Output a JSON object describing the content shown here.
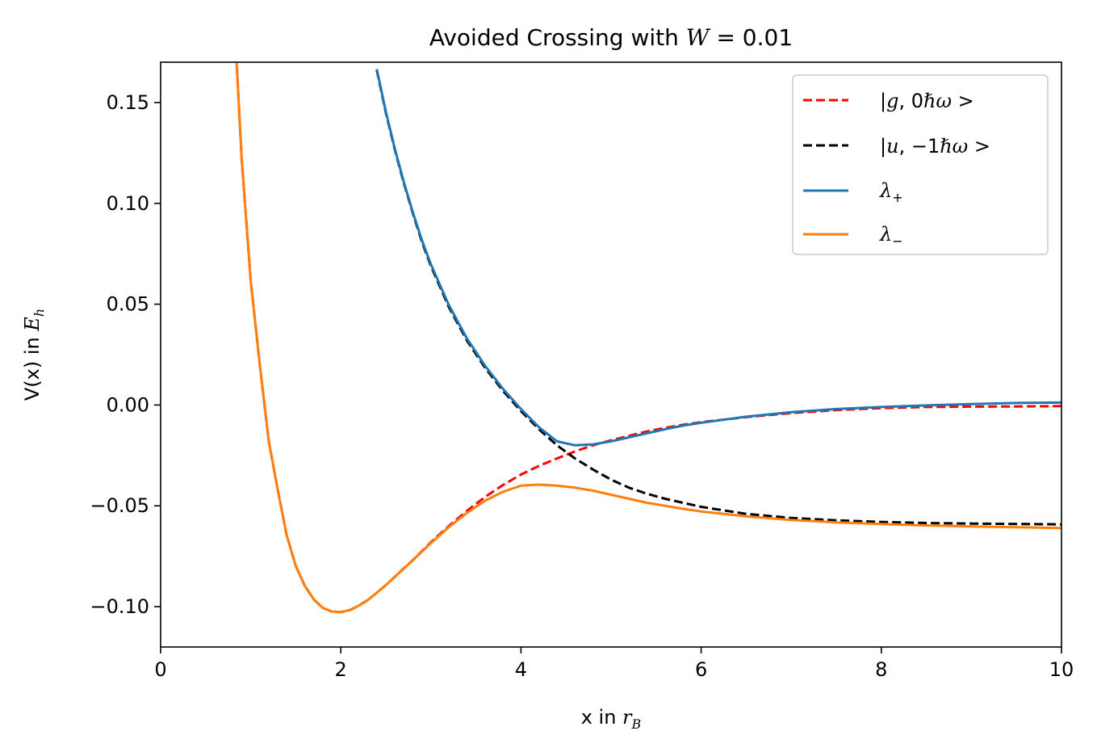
{
  "chart_data": {
    "type": "line",
    "title": "Avoided Crossing with W = 0.01",
    "title_parts": {
      "prefix": "Avoided Crossing with ",
      "var": "W",
      "suffix": " = 0.01"
    },
    "xlabel": "x in r_B",
    "xlabel_parts": {
      "prefix": "x in ",
      "var": "r",
      "sub": "B"
    },
    "ylabel": "V(x) in E_h",
    "ylabel_parts": {
      "prefix": "V(x) in ",
      "var": "E",
      "sub": "h"
    },
    "xlim": [
      0,
      10
    ],
    "ylim": [
      -0.12,
      0.17
    ],
    "xticks": [
      0,
      2,
      4,
      6,
      8,
      10
    ],
    "xtick_labels": [
      "0",
      "2",
      "4",
      "6",
      "8",
      "10"
    ],
    "yticks": [
      -0.1,
      -0.05,
      0.0,
      0.05,
      0.1,
      0.15
    ],
    "ytick_labels": [
      "−0.10",
      "−0.05",
      "0.00",
      "0.05",
      "0.10",
      "0.15"
    ],
    "grid": false,
    "legend_position": "top-right",
    "x": [
      0.8,
      0.9,
      1.0,
      1.1,
      1.2,
      1.3,
      1.4,
      1.5,
      1.6,
      1.7,
      1.8,
      1.9,
      2.0,
      2.1,
      2.2,
      2.3,
      2.4,
      2.5,
      2.6,
      2.7,
      2.8,
      2.9,
      3.0,
      3.2,
      3.4,
      3.6,
      3.8,
      4.0,
      4.2,
      4.4,
      4.6,
      4.8,
      5.0,
      5.2,
      5.4,
      5.6,
      5.8,
      6.0,
      6.5,
      7.0,
      7.5,
      8.0,
      8.5,
      9.0,
      9.5,
      10.0
    ],
    "series": [
      {
        "name": "|g,0ℏω>",
        "label_parts": {
          "state": "g",
          "n": "0"
        },
        "color": "#ff0000",
        "dashed": true,
        "values": [
          0.2069,
          0.122,
          0.0617,
          0.0201,
          -0.0178,
          -0.0421,
          -0.0647,
          -0.0798,
          -0.0897,
          -0.0964,
          -0.1006,
          -0.1024,
          -0.1027,
          -0.1017,
          -0.0995,
          -0.0967,
          -0.0931,
          -0.0893,
          -0.0852,
          -0.081,
          -0.0769,
          -0.0725,
          -0.0681,
          -0.06,
          -0.0525,
          -0.0456,
          -0.0397,
          -0.0345,
          -0.0302,
          -0.0265,
          -0.023,
          -0.02,
          -0.0175,
          -0.0153,
          -0.0131,
          -0.0113,
          -0.0098,
          -0.0085,
          -0.006,
          -0.004,
          -0.0025,
          -0.0015,
          -0.001,
          -0.0008,
          -0.0007,
          -0.0005
        ]
      },
      {
        "name": "|u,−1ℏω>",
        "label_parts": {
          "state": "u",
          "n": "−1"
        },
        "color": "#000000",
        "dashed": true,
        "values": [
          null,
          null,
          null,
          null,
          null,
          null,
          null,
          null,
          null,
          null,
          null,
          null,
          null,
          null,
          null,
          null,
          0.166,
          0.145,
          0.1265,
          0.11,
          0.095,
          0.081,
          0.069,
          0.0485,
          0.032,
          0.0185,
          0.007,
          -0.003,
          -0.012,
          -0.02,
          -0.0265,
          -0.032,
          -0.037,
          -0.041,
          -0.044,
          -0.0465,
          -0.0485,
          -0.0505,
          -0.054,
          -0.056,
          -0.0572,
          -0.058,
          -0.0585,
          -0.0588,
          -0.059,
          -0.0592
        ]
      },
      {
        "name": "λ+",
        "label_parts": {
          "sym": "λ",
          "sub": "+"
        },
        "color": "#1f77b4",
        "dashed": false,
        "values": [
          null,
          null,
          null,
          null,
          null,
          null,
          null,
          null,
          null,
          null,
          null,
          null,
          null,
          null,
          null,
          null,
          0.1665,
          0.1455,
          0.127,
          0.1105,
          0.0955,
          0.0818,
          0.0698,
          0.0495,
          0.033,
          0.0195,
          0.008,
          -0.002,
          -0.011,
          -0.018,
          -0.02,
          -0.0195,
          -0.018,
          -0.016,
          -0.014,
          -0.012,
          -0.0102,
          -0.0088,
          -0.0058,
          -0.0035,
          -0.002,
          -0.001,
          -0.0002,
          0.0005,
          0.001,
          0.0012
        ]
      },
      {
        "name": "λ−",
        "label_parts": {
          "sym": "λ",
          "sub": "−"
        },
        "color": "#ff7f0e",
        "dashed": false,
        "values": [
          0.2069,
          0.122,
          0.0617,
          0.0201,
          -0.0178,
          -0.0421,
          -0.0647,
          -0.0798,
          -0.0897,
          -0.0964,
          -0.1006,
          -0.1024,
          -0.1027,
          -0.1017,
          -0.0995,
          -0.0967,
          -0.0931,
          -0.0893,
          -0.0852,
          -0.0811,
          -0.077,
          -0.0727,
          -0.0685,
          -0.0605,
          -0.0535,
          -0.0475,
          -0.043,
          -0.04,
          -0.0395,
          -0.04,
          -0.041,
          -0.0425,
          -0.0445,
          -0.0465,
          -0.0485,
          -0.05,
          -0.0515,
          -0.0528,
          -0.0552,
          -0.057,
          -0.0582,
          -0.059,
          -0.0597,
          -0.0602,
          -0.0606,
          -0.061
        ]
      }
    ]
  }
}
